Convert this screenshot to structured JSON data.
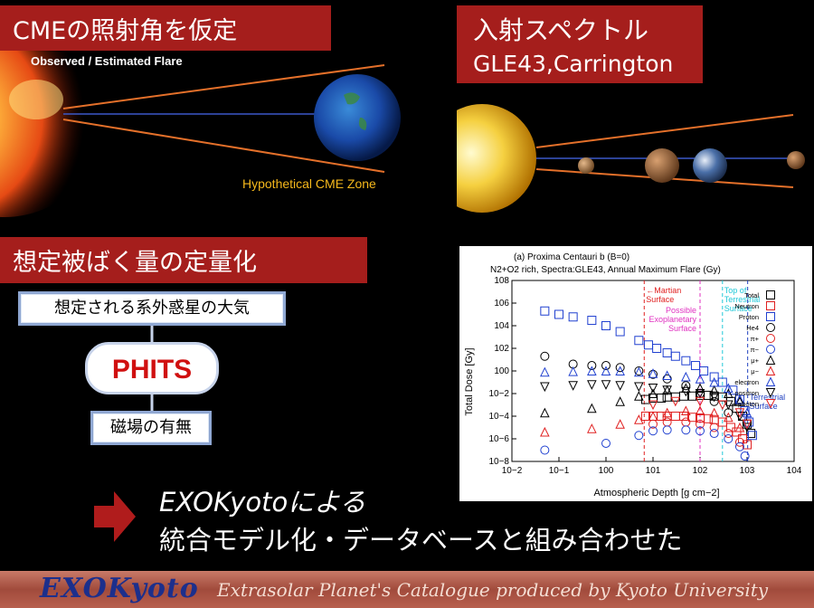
{
  "panel1": {
    "banner_title": "CMEの照射角を仮定",
    "flare_label": "Observed / Estimated Flare",
    "cme_zone_label": "Hypothetical CME Zone"
  },
  "panel2": {
    "banner_title": "入射スペクトル",
    "banner_subtitle": "GLE43,Carrington"
  },
  "panel3": {
    "banner_title": "想定被ばく量の定量化",
    "atmosphere_box": "想定される系外惑星の大気",
    "phits_label": "PHITS",
    "magnetic_box": "磁場の有無"
  },
  "conclusion": {
    "line1": "EXOKyotoによる",
    "line2": "統合モデル化・データベースと組み合わせた"
  },
  "footer": {
    "logo": "EXOKyoto",
    "tagline": "Extrasolar Planet's Catalogue produced by Kyoto University"
  },
  "colors": {
    "banner_red": "#a51e1c",
    "cme_zone": "#f5b81c",
    "footer_logo": "#1c2f8c"
  },
  "chart_data": {
    "type": "scatter",
    "title": "(a) Proxima Centauri b (B=0)",
    "subtitle": "N2+O2 rich, Spectra:GLE43, Annual Maximum Flare (Gy)",
    "xlabel": "Atmospheric Depth [g cm−2]",
    "ylabel": "Total Dose [Gy]",
    "xscale": "log",
    "yscale": "log",
    "xlim": [
      0.01,
      10000
    ],
    "ylim": [
      1e-08,
      100000000.0
    ],
    "x_ticks": [
      "10−2",
      "10−1",
      "100",
      "101",
      "102",
      "103",
      "104"
    ],
    "y_ticks": [
      "10−8",
      "10−6",
      "10−4",
      "10−2",
      "100",
      "102",
      "104",
      "106",
      "108"
    ],
    "annotations": [
      {
        "text": "←Martian",
        "text2": "Surface",
        "x": 6.5,
        "color": "#e02020"
      },
      {
        "text": "Possible",
        "text2": "Exoplanetary",
        "text3": "Surface",
        "x": 100,
        "color": "#e030c0"
      },
      {
        "text": "Top of",
        "text2": "Terrestrial",
        "text3": "Surface",
        "x": 300,
        "color": "#20c8d8"
      },
      {
        "text": "Terrestrial",
        "text2": "Surface",
        "x": 1030,
        "color": "#2040c0"
      }
    ],
    "legend_placement": "top-right",
    "series": [
      {
        "name": "Total",
        "marker": "square",
        "color": "#000000",
        "x": [
          7,
          10,
          15,
          20,
          30,
          45,
          70,
          100,
          150,
          200,
          300,
          450,
          600,
          800,
          1000,
          1200
        ],
        "y": [
          0.003,
          0.004,
          0.004,
          0.005,
          0.005,
          0.006,
          0.006,
          0.007,
          0.007,
          0.006,
          0.005,
          0.002,
          0.0005,
          0.0001,
          2e-05,
          3e-06
        ]
      },
      {
        "name": "Neutron",
        "marker": "square",
        "color": "#e02020",
        "x": [
          7,
          10,
          15,
          20,
          30,
          45,
          70,
          100,
          150,
          200,
          300,
          450,
          600,
          800,
          1000
        ],
        "y": [
          0.0001,
          0.0001,
          0.0001,
          0.0001,
          0.0001,
          0.0001,
          8e-05,
          7e-05,
          6e-05,
          5e-05,
          3e-05,
          1e-05,
          4e-06,
          1e-06,
          3e-07
        ]
      },
      {
        "name": "Proton",
        "marker": "square",
        "color": "#2040d0",
        "x": [
          0.05,
          0.1,
          0.2,
          0.5,
          1,
          2,
          5,
          8,
          12,
          20,
          30,
          50,
          80,
          120,
          200,
          300,
          500,
          700,
          900,
          1100,
          1300
        ],
        "y": [
          200000,
          100000,
          60000,
          30000,
          10000,
          3000,
          500,
          200,
          100,
          40,
          20,
          8,
          3,
          1,
          0.3,
          0.1,
          0.02,
          0.003,
          0.0003,
          3e-05,
          2e-06
        ]
      },
      {
        "name": "He4",
        "marker": "circle",
        "color": "#000000",
        "x": [
          0.05,
          0.2,
          0.5,
          1,
          2,
          5,
          10,
          20,
          50,
          100,
          200,
          400
        ],
        "y": [
          20,
          4,
          3,
          3,
          2,
          1,
          0.5,
          0.2,
          0.05,
          0.01,
          0.002,
          0.0002
        ]
      },
      {
        "name": "π+",
        "marker": "circle",
        "color": "#e02020",
        "x": [
          10,
          20,
          50,
          100,
          200,
          400,
          700
        ],
        "y": [
          2e-05,
          3e-05,
          3e-05,
          2e-05,
          1e-05,
          3e-06,
          5e-07
        ]
      },
      {
        "name": "π−",
        "marker": "circle",
        "color": "#2040d0",
        "x": [
          0.05,
          1,
          5,
          10,
          20,
          50,
          100,
          200,
          400,
          700,
          900
        ],
        "y": [
          1e-07,
          4e-07,
          2e-06,
          5e-06,
          6e-06,
          6e-06,
          5e-06,
          3e-06,
          1e-06,
          2e-07,
          3e-08
        ]
      },
      {
        "name": "μ+",
        "marker": "triangle-up",
        "color": "#000000",
        "x": [
          0.05,
          0.5,
          2,
          5,
          10,
          20,
          50,
          100,
          200,
          400,
          700
        ],
        "y": [
          0.0002,
          0.0005,
          0.002,
          0.006,
          0.01,
          0.02,
          0.03,
          0.03,
          0.02,
          0.01,
          0.002
        ]
      },
      {
        "name": "μ−",
        "marker": "triangle-up",
        "color": "#e02020",
        "x": [
          0.05,
          0.5,
          2,
          5,
          10,
          20,
          50,
          100,
          200,
          400,
          700
        ],
        "y": [
          4e-06,
          8e-06,
          2e-05,
          5e-05,
          0.0001,
          0.0002,
          0.0003,
          0.0003,
          0.0002,
          8e-05,
          1e-05
        ]
      },
      {
        "name": "electron",
        "marker": "triangle-up",
        "color": "#2040d0",
        "x": [
          0.05,
          0.2,
          0.5,
          1,
          2,
          5,
          10,
          20,
          50,
          100,
          200,
          400,
          700,
          1000
        ],
        "y": [
          0.8,
          0.9,
          1,
          1,
          1,
          0.8,
          0.6,
          0.4,
          0.3,
          0.2,
          0.1,
          0.03,
          0.003,
          0.0002
        ]
      },
      {
        "name": "positron",
        "marker": "triangle-down",
        "color": "#000000",
        "x": [
          0.05,
          0.2,
          0.5,
          1,
          2,
          5,
          10,
          20,
          50,
          100,
          200,
          400,
          700,
          1000
        ],
        "y": [
          0.04,
          0.05,
          0.06,
          0.06,
          0.05,
          0.04,
          0.03,
          0.02,
          0.015,
          0.01,
          0.005,
          0.001,
          0.0001,
          1e-05
        ]
      },
      {
        "name": "photon",
        "marker": "triangle-down",
        "color": "#e02020",
        "x": [
          10,
          30,
          100,
          300,
          700,
          1000
        ],
        "y": [
          0.001,
          0.002,
          0.002,
          0.001,
          0.0002,
          2e-05
        ]
      }
    ]
  }
}
